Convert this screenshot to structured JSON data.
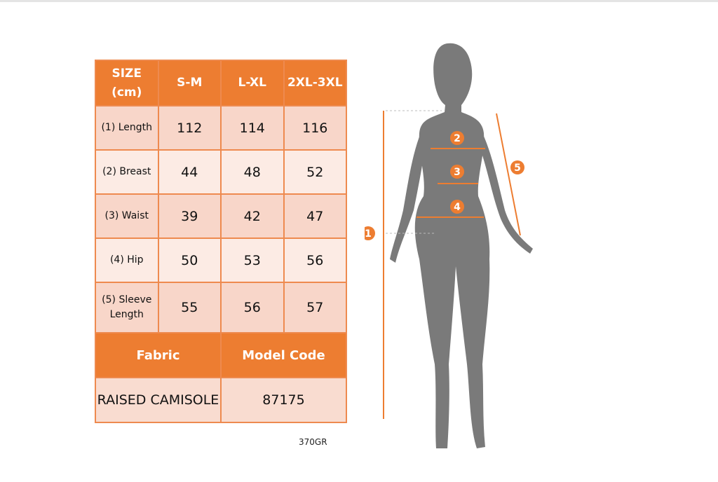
{
  "table": {
    "headers": [
      "SIZE (cm)",
      "S-M",
      "L-XL",
      "2XL-3XL"
    ],
    "rows": [
      {
        "label": "(1) Length",
        "values": [
          "112",
          "114",
          "116"
        ]
      },
      {
        "label": "(2) Breast",
        "values": [
          "44",
          "48",
          "52"
        ]
      },
      {
        "label": "(3) Waist",
        "values": [
          "39",
          "42",
          "47"
        ]
      },
      {
        "label": "(4) Hip",
        "values": [
          "50",
          "53",
          "56"
        ]
      },
      {
        "label": "(5) Sleeve Length",
        "values": [
          "55",
          "56",
          "57"
        ]
      }
    ],
    "fabric_label": "Fabric",
    "model_code_label": "Model Code",
    "fabric_value": "RAISED CAMISOLE",
    "model_code_value": "87175"
  },
  "note": "370GR",
  "markers": [
    "1",
    "2",
    "3",
    "4",
    "5"
  ],
  "colors": {
    "accent": "#ed7d31",
    "row_dark": "#f8d6c9",
    "row_light": "#fcebe4",
    "silhouette": "#7a7a7a"
  }
}
